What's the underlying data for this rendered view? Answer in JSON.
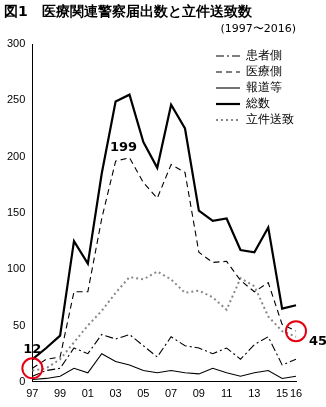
{
  "chart_data": {
    "type": "line",
    "title": "図1　医療関連警察届出数と立件送致数",
    "subtitle": "(1997〜2016)",
    "categories": [
      "97",
      null,
      "99",
      null,
      "01",
      null,
      "03",
      null,
      "05",
      null,
      "07",
      null,
      "09",
      null,
      "11",
      null,
      "13",
      null,
      "15",
      "16"
    ],
    "series": [
      {
        "name": "患者側",
        "color": "#000000",
        "line_style": "dashdot",
        "values": [
          5,
          10,
          12,
          30,
          25,
          42,
          38,
          42,
          32,
          22,
          40,
          32,
          30,
          25,
          30,
          20,
          33,
          40,
          15,
          20
        ]
      },
      {
        "name": "医療側",
        "color": "#000000",
        "line_style": "dashed",
        "values": [
          12,
          20,
          22,
          80,
          80,
          145,
          196,
          199,
          177,
          163,
          193,
          186,
          115,
          106,
          107,
          90,
          80,
          88,
          51,
          45
        ]
      },
      {
        "name": "報道等",
        "color": "#000000",
        "line_style": "solid",
        "values": [
          2,
          3,
          5,
          12,
          8,
          25,
          18,
          15,
          10,
          8,
          10,
          8,
          7,
          12,
          8,
          5,
          8,
          10,
          3,
          5
        ]
      },
      {
        "name": "総数",
        "color": "#000000",
        "line_style": "solid",
        "values": [
          20,
          30,
          41,
          125,
          105,
          185,
          249,
          255,
          213,
          190,
          246,
          225,
          152,
          143,
          145,
          117,
          115,
          137,
          65,
          68
        ]
      },
      {
        "name": "立件送致",
        "color": "#888888",
        "line_style": "dotted",
        "values": [
          10,
          12,
          20,
          35,
          50,
          63,
          79,
          93,
          91,
          98,
          91,
          79,
          81,
          75,
          64,
          92,
          85,
          58,
          45,
          40
        ]
      }
    ],
    "ylim": [
      0,
      300
    ],
    "yticks": [
      0,
      50,
      100,
      150,
      200,
      250,
      300
    ],
    "grid": false,
    "legend": "upper right",
    "annotations": [
      {
        "text": "12",
        "category_index": 0,
        "value": 12,
        "marker": "circle",
        "color": "#e60012"
      },
      {
        "text": "199",
        "category_index": 7,
        "value": 199
      },
      {
        "text": "45",
        "category_index": 19,
        "value": 45,
        "marker": "circle",
        "color": "#e60012"
      }
    ]
  }
}
